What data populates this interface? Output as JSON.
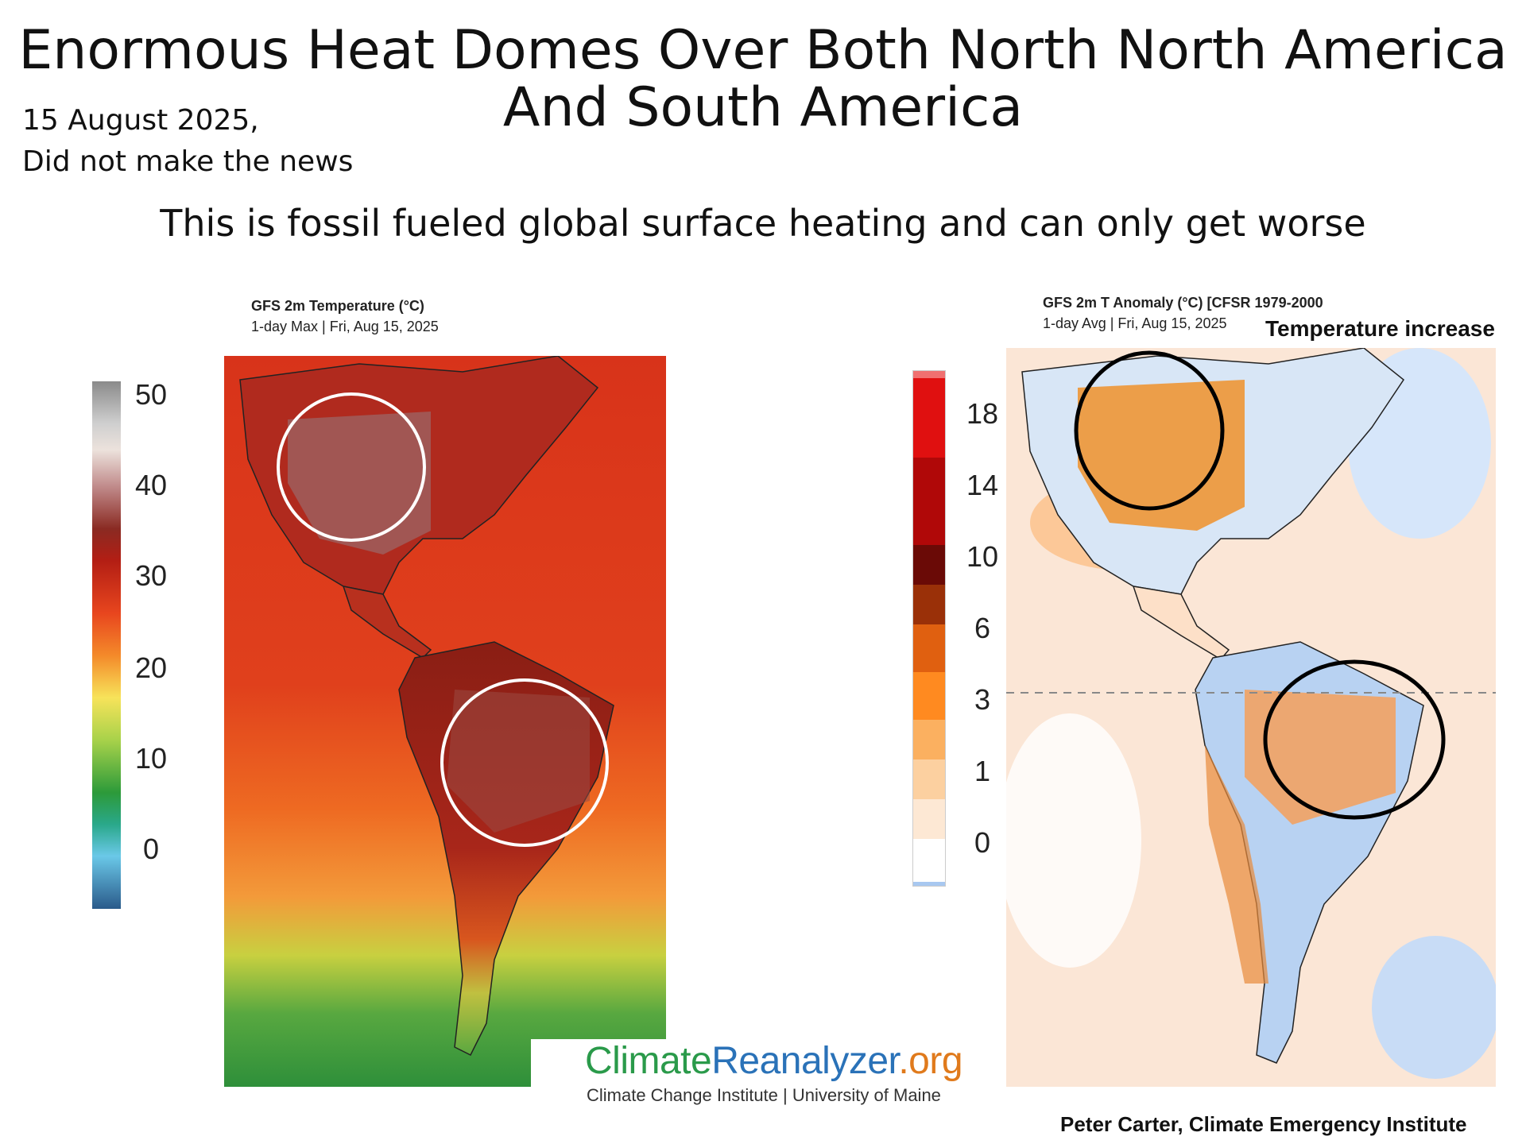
{
  "header": {
    "title_line1": "Enormous Heat Domes Over Both North North America",
    "title_line2": "And South America",
    "date_line1": "15 August 2025,",
    "date_line2": "Did not make the news",
    "subtitle": "This is fossil fueled global surface heating and can only get worse"
  },
  "left_map": {
    "title": "GFS 2m Temperature (°C)",
    "subtitle": "1-day Max | Fri, Aug 15, 2025",
    "colorbar_ticks": [
      "50",
      "40",
      "30",
      "20",
      "10",
      "0"
    ]
  },
  "right_map": {
    "title": "GFS 2m T Anomaly (°C) [CFSR 1979-2000",
    "subtitle": "1-day Avg | Fri, Aug 15, 2025",
    "annotation": "Temperature increase",
    "colorbar_ticks": [
      "18",
      "14",
      "10",
      "6",
      "3",
      "1",
      "0"
    ]
  },
  "logo": {
    "part1": "Climate",
    "part2": "Reanalyzer",
    "part3": ".org",
    "tagline": "Climate Change Institute | University of Maine"
  },
  "credit": "Peter Carter, Climate Emergency Institute",
  "colors": {
    "hot_dark": "#8b1a12",
    "hot_red": "#d9341c",
    "warm_orange": "#f07a20",
    "green": "#3c9a3c",
    "anomaly_orange": "#f5a05a",
    "anomaly_blue": "#a8c8f0",
    "circle_left": "#ffffff",
    "circle_right": "#000000"
  }
}
